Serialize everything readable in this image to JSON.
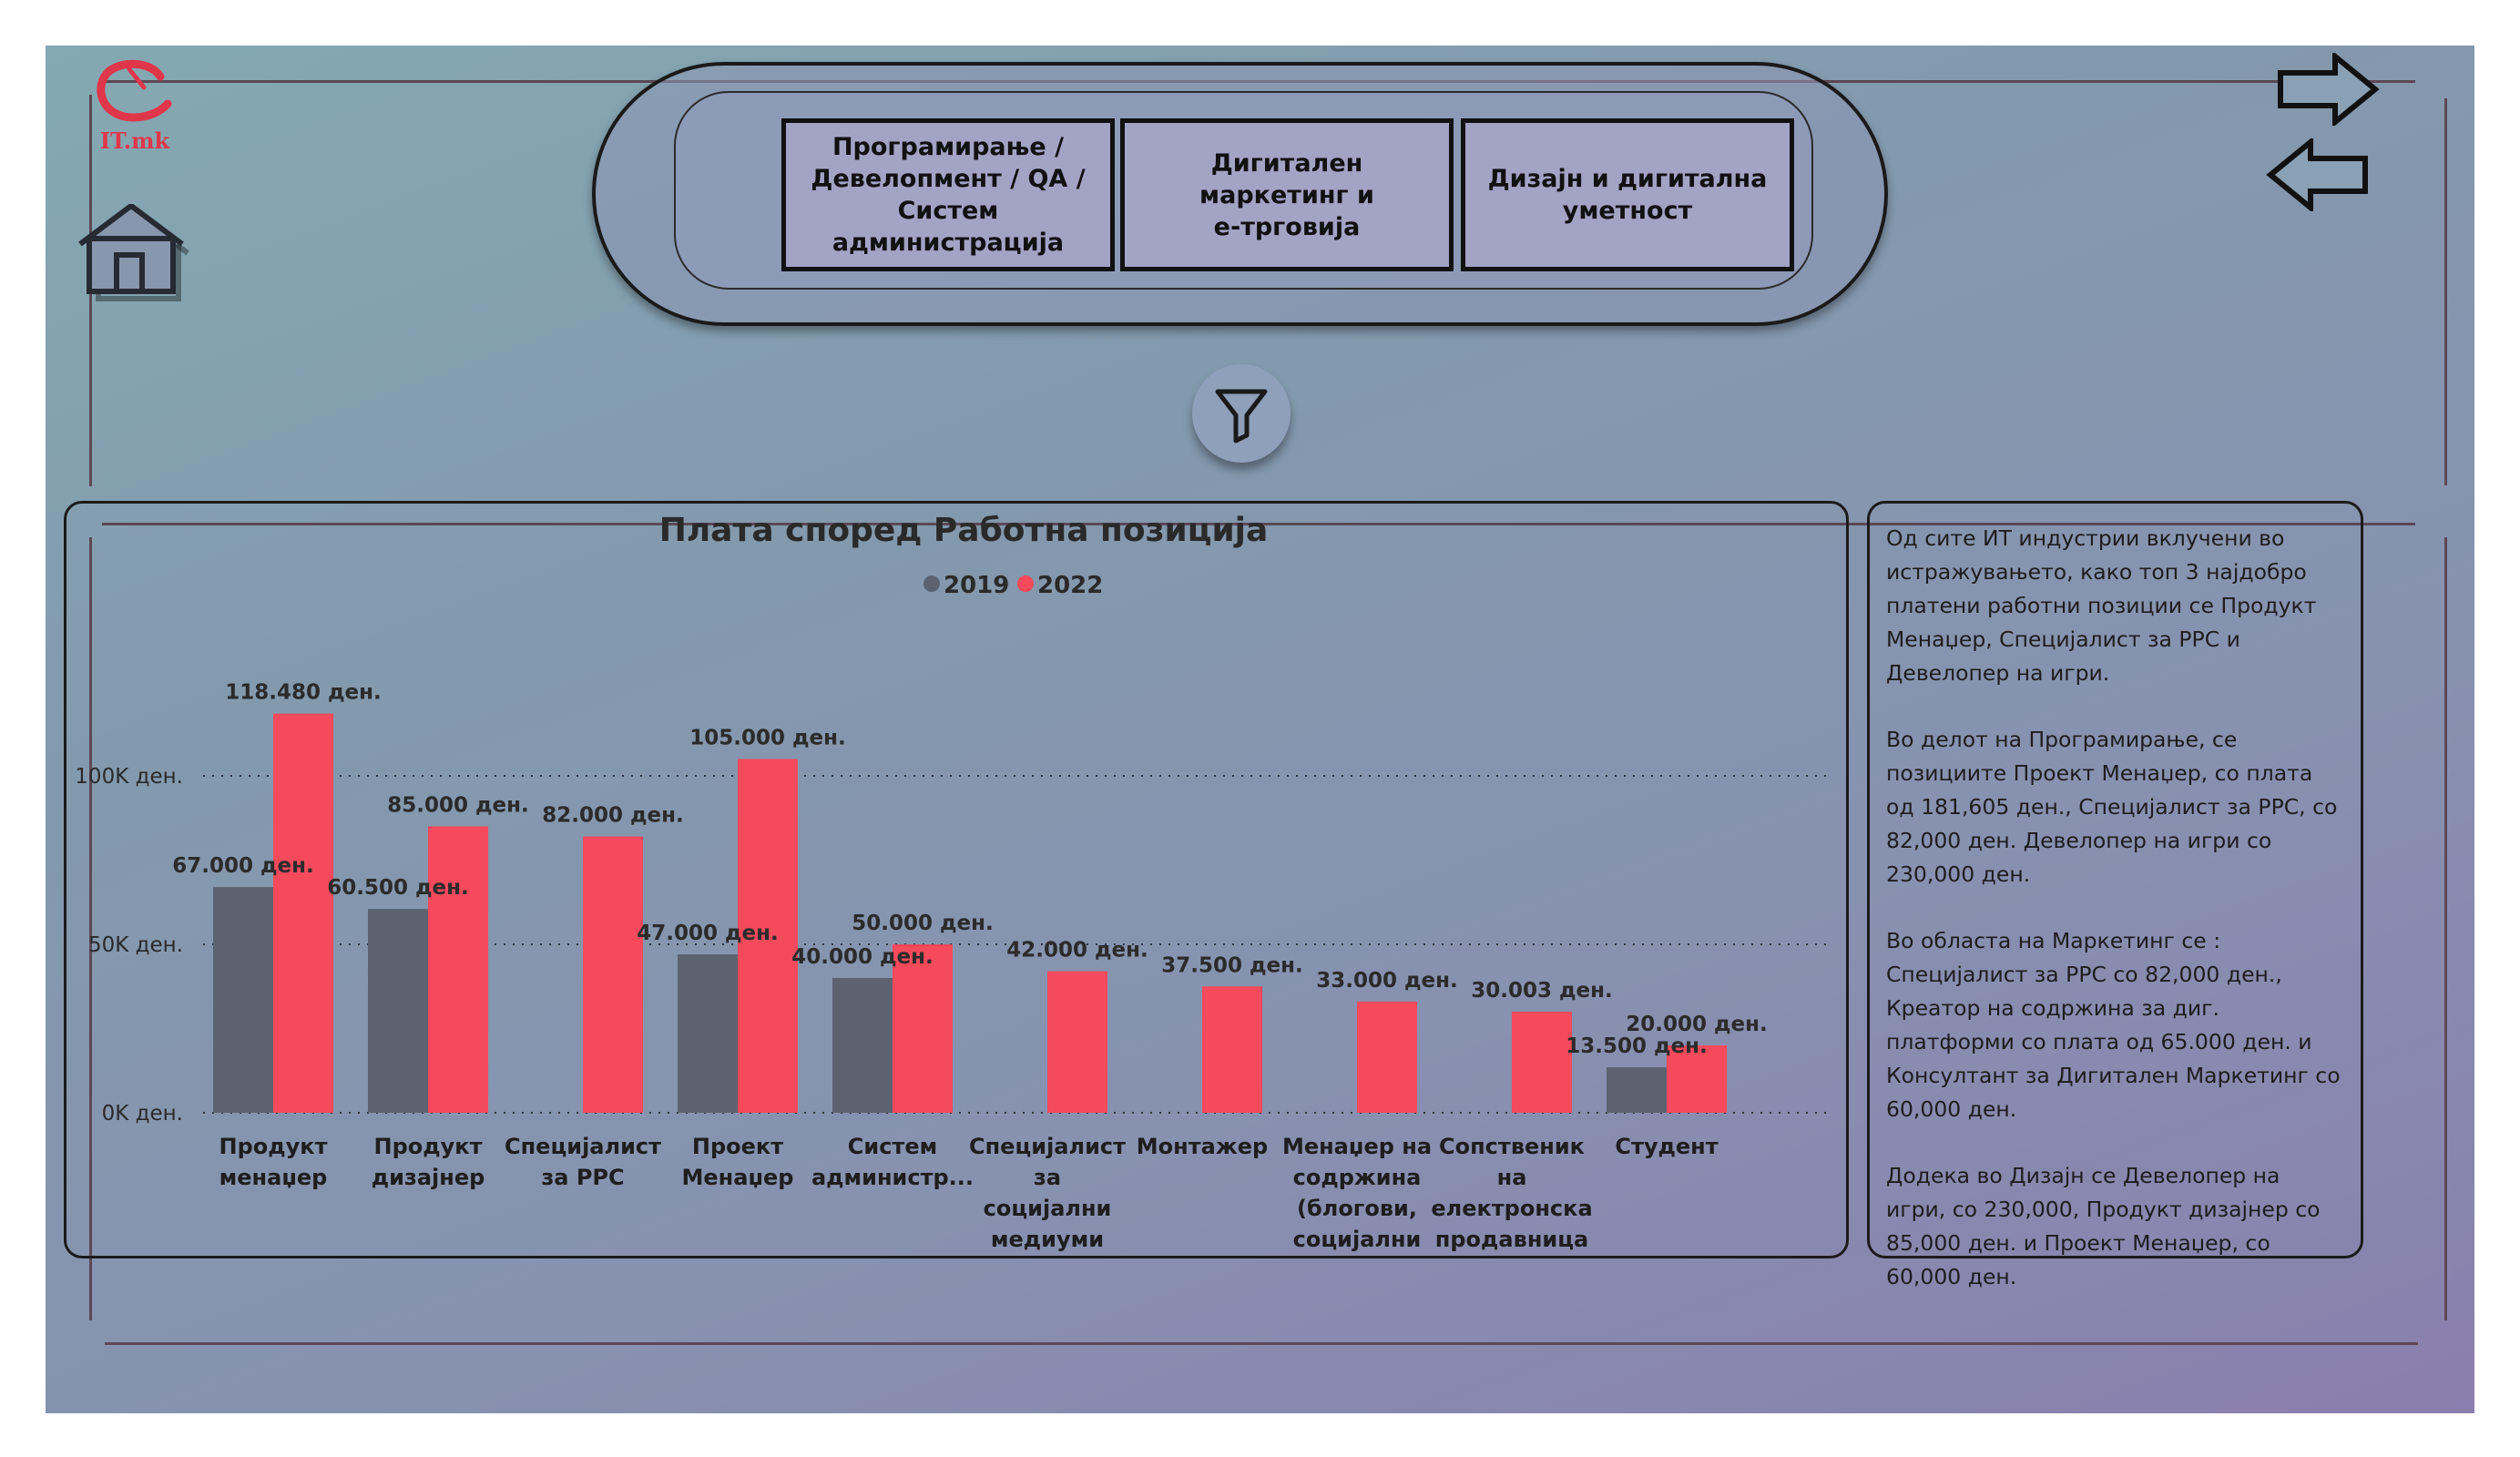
{
  "logo": {
    "text": "IT.mk"
  },
  "nav": {
    "tabs": [
      {
        "label": "Програмирање /\nДевелопмент / QA /\nСистем\nадминистрација"
      },
      {
        "label": "Дигитален маркетинг и\nе-трговија"
      },
      {
        "label": "Дизајн и дигитална\nуметност"
      }
    ]
  },
  "icons": {
    "logo": "itmk-logo-icon",
    "home": "home-icon",
    "next": "arrow-right-icon",
    "back": "arrow-left-icon",
    "filter": "filter-funnel-icon"
  },
  "colors": {
    "series_2019": "#5b6370",
    "series_2022": "#f44a5c",
    "brand": "#e0364a"
  },
  "chart_data": {
    "type": "bar",
    "title": "Плата според Работна позиција",
    "legend_position": "top-center",
    "grid": true,
    "ylim": [
      0,
      120000
    ],
    "yticks": [
      {
        "value": 0,
        "label": "0K ден."
      },
      {
        "value": 50000,
        "label": "50K ден."
      },
      {
        "value": 100000,
        "label": "100K ден."
      }
    ],
    "categories": [
      "Продукт\nменаџер",
      "Продукт\nдизајнер",
      "Специјалист\nза PPC",
      "Проект\nМенаџер",
      "Систем\nадминистр...",
      "Специјалист\nза\nсоцијални\nмедиуми",
      "Монтажер",
      "Менаџер на\nсодржина\n(блогови,\nсоцијални\nмедиуми..)",
      "Сопственик\nна\nелектронска\nпродавница",
      "Студент"
    ],
    "series": [
      {
        "name": "2019",
        "values": [
          67000,
          60500,
          null,
          47000,
          40000,
          null,
          null,
          null,
          null,
          13500
        ],
        "labels": [
          "67.000 ден.",
          "60.500 ден.",
          null,
          "47.000 ден.",
          "40.000 ден.",
          null,
          null,
          null,
          null,
          "13.500 ден."
        ]
      },
      {
        "name": "2022",
        "values": [
          118480,
          85000,
          82000,
          105000,
          50000,
          42000,
          37500,
          33000,
          30003,
          20000
        ],
        "labels": [
          "118.480 ден.",
          "85.000 ден.",
          "82.000 ден.",
          "105.000 ден.",
          "50.000 ден.",
          "42.000 ден.",
          "37.500 ден.",
          "33.000 ден.",
          "30.003 ден.",
          "20.000 ден."
        ]
      }
    ]
  },
  "info": {
    "paragraphs": [
      "Од сите ИТ индустрии вклучени во истражувањето, како топ 3 најдобро платени работни позиции се Продукт Менаџер, Специјалист за PPC и Девелопер на игри.",
      "Во делот на Програмирање, се позициите Проект Менаџер, со плата од 181,605 ден., Специјалист за PPC, со 82,000 ден. Девелопер на игри со 230,000 ден.",
      "Во областа на Маркетинг се : Специјалист за PPC со 82,000 ден., Креатор на содржина за диг. платформи со плата од 65.000 ден. и Консултант за Дигитален Маркетинг со 60,000 ден.",
      "Додека во Дизајн се Девелопер на игри, со 230,000, Продукт дизајнер со 85,000 ден. и Проект Менаџер, со 60,000 ден."
    ]
  }
}
